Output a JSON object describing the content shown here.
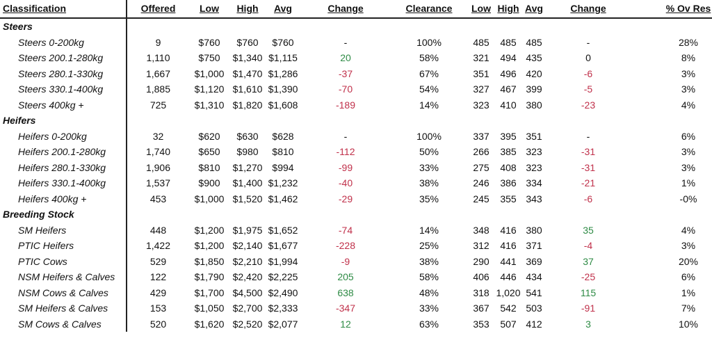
{
  "headers": {
    "classification": "Classification",
    "offered": "Offered",
    "low": "Low",
    "high": "High",
    "avg": "Avg",
    "change": "Change",
    "clearance": "Clearance",
    "low2": "Low",
    "high2": "High",
    "avg2": "Avg",
    "change2": "Change",
    "ovres": "% Ov Res"
  },
  "groups": {
    "steers": "Steers",
    "heifers": "Heifers",
    "breeding": "Breeding Stock"
  },
  "rows": [
    {
      "name": "Steers 0-200kg",
      "offered": "9",
      "low": "$760",
      "high": "$760",
      "avg": "$760",
      "change": "-",
      "change_dir": "neu",
      "clearance": "100%",
      "low2": "485",
      "high2": "485",
      "avg2": "485",
      "change2": "-",
      "change2_dir": "neu",
      "ovres": "28%"
    },
    {
      "name": "Steers 200.1-280kg",
      "offered": "1,110",
      "low": "$750",
      "high": "$1,340",
      "avg": "$1,115",
      "change": "20",
      "change_dir": "pos",
      "clearance": "58%",
      "low2": "321",
      "high2": "494",
      "avg2": "435",
      "change2": "0",
      "change2_dir": "neu",
      "ovres": "8%"
    },
    {
      "name": "Steers 280.1-330kg",
      "offered": "1,667",
      "low": "$1,000",
      "high": "$1,470",
      "avg": "$1,286",
      "change": "-37",
      "change_dir": "neg",
      "clearance": "67%",
      "low2": "351",
      "high2": "496",
      "avg2": "420",
      "change2": "-6",
      "change2_dir": "neg",
      "ovres": "3%"
    },
    {
      "name": "Steers 330.1-400kg",
      "offered": "1,885",
      "low": "$1,120",
      "high": "$1,610",
      "avg": "$1,390",
      "change": "-70",
      "change_dir": "neg",
      "clearance": "54%",
      "low2": "327",
      "high2": "467",
      "avg2": "399",
      "change2": "-5",
      "change2_dir": "neg",
      "ovres": "3%"
    },
    {
      "name": "Steers 400kg +",
      "offered": "725",
      "low": "$1,310",
      "high": "$1,820",
      "avg": "$1,608",
      "change": "-189",
      "change_dir": "neg",
      "clearance": "14%",
      "low2": "323",
      "high2": "410",
      "avg2": "380",
      "change2": "-23",
      "change2_dir": "neg",
      "ovres": "4%"
    },
    {
      "name": "Heifers 0-200kg",
      "offered": "32",
      "low": "$620",
      "high": "$630",
      "avg": "$628",
      "change": "-",
      "change_dir": "neu",
      "clearance": "100%",
      "low2": "337",
      "high2": "395",
      "avg2": "351",
      "change2": "-",
      "change2_dir": "neu",
      "ovres": "6%"
    },
    {
      "name": "Heifers 200.1-280kg",
      "offered": "1,740",
      "low": "$650",
      "high": "$980",
      "avg": "$810",
      "change": "-112",
      "change_dir": "neg",
      "clearance": "50%",
      "low2": "266",
      "high2": "385",
      "avg2": "323",
      "change2": "-31",
      "change2_dir": "neg",
      "ovres": "3%"
    },
    {
      "name": "Heifers 280.1-330kg",
      "offered": "1,906",
      "low": "$810",
      "high": "$1,270",
      "avg": "$994",
      "change": "-99",
      "change_dir": "neg",
      "clearance": "33%",
      "low2": "275",
      "high2": "408",
      "avg2": "323",
      "change2": "-31",
      "change2_dir": "neg",
      "ovres": "3%"
    },
    {
      "name": "Heifers 330.1-400kg",
      "offered": "1,537",
      "low": "$900",
      "high": "$1,400",
      "avg": "$1,232",
      "change": "-40",
      "change_dir": "neg",
      "clearance": "38%",
      "low2": "246",
      "high2": "386",
      "avg2": "334",
      "change2": "-21",
      "change2_dir": "neg",
      "ovres": "1%"
    },
    {
      "name": "Heifers 400kg +",
      "offered": "453",
      "low": "$1,000",
      "high": "$1,520",
      "avg": "$1,462",
      "change": "-29",
      "change_dir": "neg",
      "clearance": "35%",
      "low2": "245",
      "high2": "355",
      "avg2": "343",
      "change2": "-6",
      "change2_dir": "neg",
      "ovres": "-0%"
    },
    {
      "name": "SM Heifers",
      "offered": "448",
      "low": "$1,200",
      "high": "$1,975",
      "avg": "$1,652",
      "change": "-74",
      "change_dir": "neg",
      "clearance": "14%",
      "low2": "348",
      "high2": "416",
      "avg2": "380",
      "change2": "35",
      "change2_dir": "pos",
      "ovres": "4%"
    },
    {
      "name": "PTIC Heifers",
      "offered": "1,422",
      "low": "$1,200",
      "high": "$2,140",
      "avg": "$1,677",
      "change": "-228",
      "change_dir": "neg",
      "clearance": "25%",
      "low2": "312",
      "high2": "416",
      "avg2": "371",
      "change2": "-4",
      "change2_dir": "neg",
      "ovres": "3%"
    },
    {
      "name": "PTIC Cows",
      "offered": "529",
      "low": "$1,850",
      "high": "$2,210",
      "avg": "$1,994",
      "change": "-9",
      "change_dir": "neg",
      "clearance": "38%",
      "low2": "290",
      "high2": "441",
      "avg2": "369",
      "change2": "37",
      "change2_dir": "pos",
      "ovres": "20%"
    },
    {
      "name": "NSM Heifers & Calves",
      "offered": "122",
      "low": "$1,790",
      "high": "$2,420",
      "avg": "$2,225",
      "change": "205",
      "change_dir": "pos",
      "clearance": "58%",
      "low2": "406",
      "high2": "446",
      "avg2": "434",
      "change2": "-25",
      "change2_dir": "neg",
      "ovres": "6%"
    },
    {
      "name": "NSM Cows & Calves",
      "offered": "429",
      "low": "$1,700",
      "high": "$4,500",
      "avg": "$2,490",
      "change": "638",
      "change_dir": "pos",
      "clearance": "48%",
      "low2": "318",
      "high2": "1,020",
      "avg2": "541",
      "change2": "115",
      "change2_dir": "pos",
      "ovres": "1%"
    },
    {
      "name": "SM Heifers & Calves",
      "offered": "153",
      "low": "$1,050",
      "high": "$2,700",
      "avg": "$2,333",
      "change": "-347",
      "change_dir": "neg",
      "clearance": "33%",
      "low2": "367",
      "high2": "542",
      "avg2": "503",
      "change2": "-91",
      "change2_dir": "neg",
      "ovres": "7%"
    },
    {
      "name": "SM Cows & Calves",
      "offered": "520",
      "low": "$1,620",
      "high": "$2,520",
      "avg": "$2,077",
      "change": "12",
      "change_dir": "pos",
      "clearance": "63%",
      "low2": "353",
      "high2": "507",
      "avg2": "412",
      "change2": "3",
      "change2_dir": "pos",
      "ovres": "10%"
    }
  ],
  "colors": {
    "negative": "#c0304a",
    "positive": "#2e8b45",
    "neutral": "#111111"
  }
}
